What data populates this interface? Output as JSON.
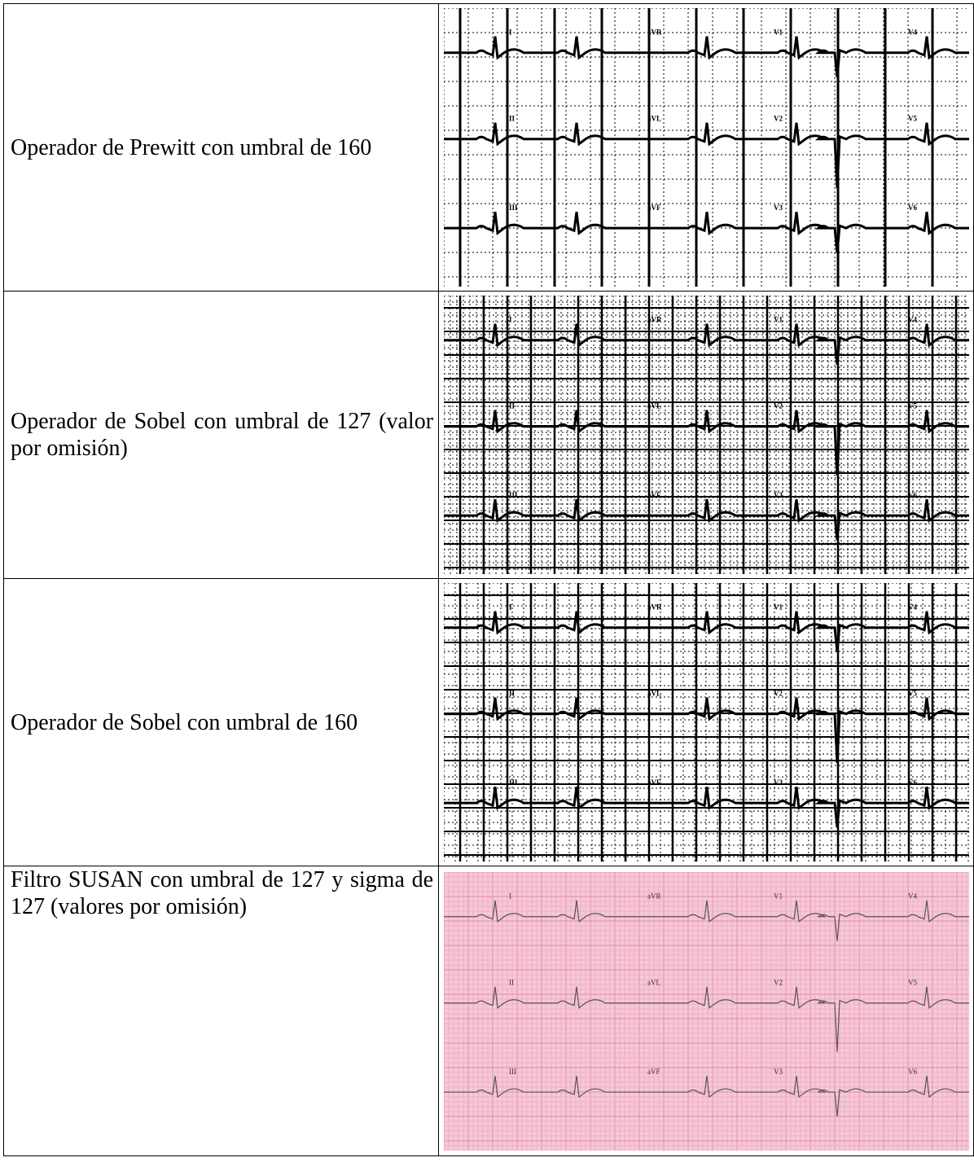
{
  "table": {
    "rows": [
      {
        "label": "Operador de Prewitt con umbral de 160"
      },
      {
        "label": "Operador de Sobel con umbral de 127 (valor por omisión)"
      },
      {
        "label": "Operador de Sobel con umbral de 160"
      },
      {
        "label": "Filtro SUSAN con umbral de 127 y sigma de 127 (valores por omisión)"
      }
    ]
  },
  "leads": [
    [
      "I",
      "aVR",
      "V1",
      "V4"
    ],
    [
      "II",
      "aVL",
      "V2",
      "V5"
    ],
    [
      "III",
      "aVF",
      "V3",
      "V6"
    ]
  ]
}
